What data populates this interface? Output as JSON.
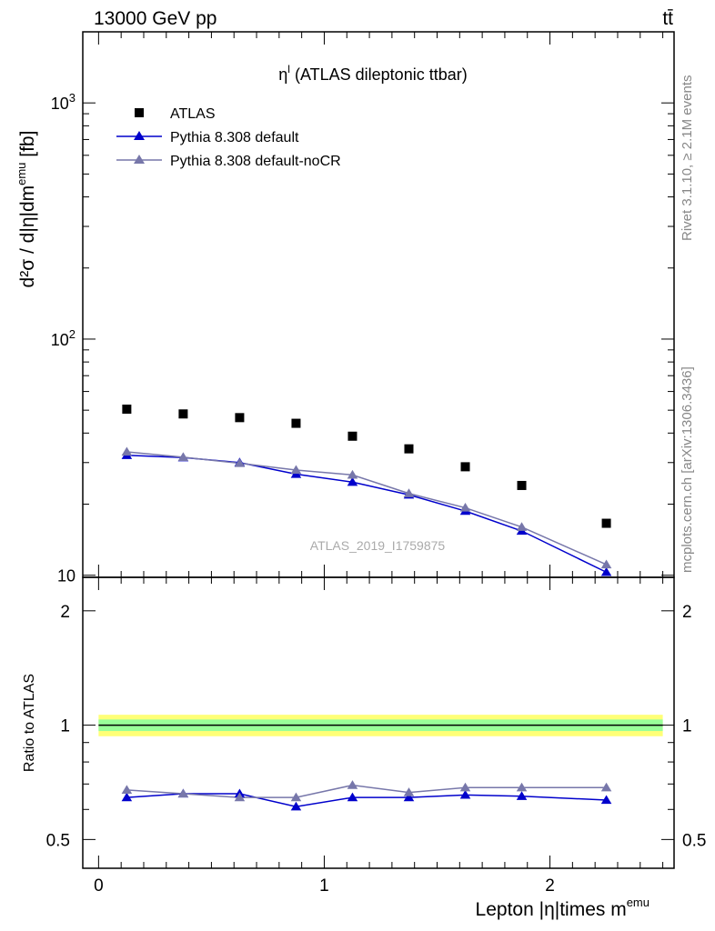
{
  "header": {
    "energy_label": "13000 GeV pp",
    "process_label": "tt̄"
  },
  "side": {
    "rivet_label": "Rivet 3.1.10, ≥ 2.1M events",
    "mcplots_label": "mcplots.cern.ch [arXiv:1306.3436]"
  },
  "colors": {
    "data": "#000000",
    "default": "#0000cc",
    "nocr": "#7777aa",
    "band_inner": "#99ff99",
    "band_outer": "#ffff77"
  },
  "chart_data": [
    {
      "type": "scatter",
      "panel": "main",
      "title": "η",
      "title_sup": "l",
      "title_rest": " (ATLAS dileptonic ttbar)",
      "ylabel": "d²σ / d|η|dm",
      "ylabel_sup": "emu",
      "ylabel_unit": " [fb]",
      "yscale": "log",
      "ylim": [
        9.8,
        2000
      ],
      "xlim": [
        -0.07,
        2.55
      ],
      "yticks": [
        {
          "value": 10,
          "base": "10",
          "exp": ""
        },
        {
          "value": 100,
          "base": "10",
          "exp": "2"
        },
        {
          "value": 1000,
          "base": "10",
          "exp": "3"
        }
      ],
      "watermark": "ATLAS_2019_I1759875",
      "legend_position": "top-left",
      "x": [
        0.125,
        0.375,
        0.625,
        0.875,
        1.125,
        1.375,
        1.625,
        1.875,
        2.25
      ],
      "series": [
        {
          "name": "ATLAS",
          "key": "data",
          "marker": "square",
          "values": [
            50.5,
            48.2,
            46.5,
            44.0,
            38.8,
            34.3,
            28.8,
            24.0,
            16.6
          ]
        },
        {
          "name": "Pythia 8.308 default",
          "key": "default",
          "marker": "triangle",
          "values": [
            32.2,
            31.5,
            30.0,
            26.8,
            24.8,
            21.9,
            18.7,
            15.4,
            10.3
          ]
        },
        {
          "name": "Pythia 8.308 default-noCR",
          "key": "nocr",
          "marker": "triangle",
          "values": [
            33.3,
            31.6,
            29.8,
            27.9,
            26.6,
            22.2,
            19.3,
            16.0,
            11.1
          ]
        }
      ]
    },
    {
      "type": "line",
      "panel": "ratio",
      "ylabel": "Ratio to ATLAS",
      "xlabel": "Lepton |η|times m",
      "xlabel_sup": "emu",
      "yscale": "log",
      "ylim": [
        0.42,
        2.45
      ],
      "xlim": [
        -0.07,
        2.55
      ],
      "yticks": [
        0.5,
        1,
        2
      ],
      "xticks": [
        0,
        1,
        2
      ],
      "band_inner": [
        0.965,
        1.035
      ],
      "band_outer": [
        0.935,
        1.065
      ],
      "x": [
        0.125,
        0.375,
        0.625,
        0.875,
        1.125,
        1.375,
        1.625,
        1.875,
        2.25
      ],
      "series": [
        {
          "name": "Pythia 8.308 default",
          "key": "default",
          "values": [
            0.645,
            0.66,
            0.66,
            0.61,
            0.645,
            0.645,
            0.655,
            0.65,
            0.635
          ]
        },
        {
          "name": "Pythia 8.308 default-noCR",
          "key": "nocr",
          "values": [
            0.675,
            0.66,
            0.645,
            0.645,
            0.695,
            0.665,
            0.685,
            0.685,
            0.685
          ]
        }
      ]
    }
  ]
}
